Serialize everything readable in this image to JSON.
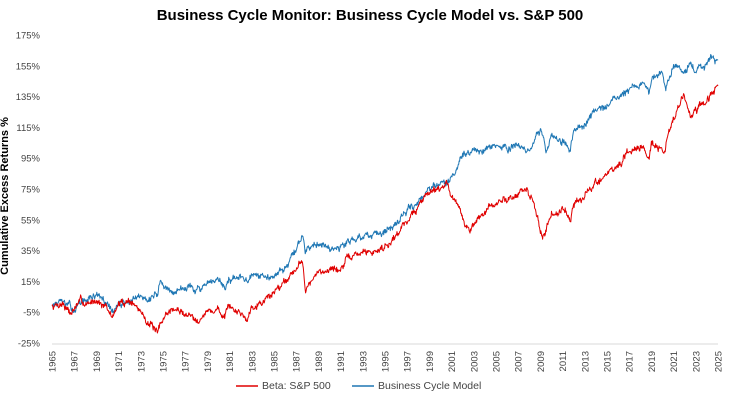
{
  "chart_data": {
    "type": "line",
    "title": "Business Cycle Monitor: Business Cycle Model vs. S&P 500",
    "xlabel": "",
    "ylabel": "Cumulative Excess Returns %",
    "xlim": [
      1965,
      2025
    ],
    "ylim": [
      -25,
      175
    ],
    "y_ticks": [
      -25,
      -5,
      15,
      35,
      55,
      75,
      95,
      115,
      135,
      155,
      175
    ],
    "y_tick_labels": [
      "-25%",
      "-5%",
      "15%",
      "35%",
      "55%",
      "75%",
      "95%",
      "115%",
      "135%",
      "155%",
      "175%"
    ],
    "x_ticks": [
      1965,
      1967,
      1969,
      1971,
      1973,
      1975,
      1977,
      1979,
      1981,
      1983,
      1985,
      1987,
      1989,
      1991,
      1993,
      1995,
      1997,
      1999,
      2001,
      2003,
      2005,
      2007,
      2009,
      2011,
      2013,
      2015,
      2017,
      2019,
      2021,
      2023,
      2025
    ],
    "x_tick_labels": [
      "1965",
      "1967",
      "1969",
      "1971",
      "1973",
      "1975",
      "1977",
      "1979",
      "1981",
      "1983",
      "1985",
      "1987",
      "1989",
      "1991",
      "1993",
      "1995",
      "1997",
      "1999",
      "2001",
      "2003",
      "2005",
      "2007",
      "2009",
      "2011",
      "2013",
      "2015",
      "2017",
      "2019",
      "2021",
      "2023",
      "2025"
    ],
    "grid": false,
    "legend_position": "bottom",
    "series": [
      {
        "name": "Beta: S&P 500",
        "color": "#e00000",
        "x": [
          1965,
          1966,
          1966.7,
          1967.5,
          1968.3,
          1969,
          1969.8,
          1970.4,
          1971,
          1972,
          1973,
          1974,
          1974.5,
          1974.75,
          1975.2,
          1976,
          1977,
          1978.2,
          1979,
          1980,
          1980.4,
          1981,
          1982,
          1982.6,
          1983,
          1984,
          1985,
          1986,
          1987,
          1987.6,
          1987.85,
          1988.5,
          1989,
          1990,
          1990.8,
          1991.5,
          1992,
          1993,
          1994,
          1995,
          1996,
          1997,
          1998,
          1999,
          2000,
          2000.5,
          2001,
          2001.7,
          2002,
          2002.7,
          2003.3,
          2004,
          2005,
          2006,
          2007,
          2007.8,
          2008.4,
          2008.8,
          2009.2,
          2010,
          2010.5,
          2011,
          2011.7,
          2012,
          2013,
          2014,
          2015,
          2016,
          2017,
          2018,
          2018.8,
          2019,
          2019.5,
          2020.2,
          2020.5,
          2021,
          2021.9,
          2022.5,
          2023,
          2024,
          2025
        ],
        "y": [
          -1,
          1,
          -6,
          2,
          0,
          4,
          -2,
          -8,
          0,
          3,
          -5,
          -14,
          -20,
          -14,
          -6,
          -3,
          -6,
          -9,
          -5,
          -3,
          -8,
          -3,
          -5,
          -10,
          0,
          2,
          8,
          16,
          24,
          28,
          10,
          16,
          20,
          24,
          22,
          28,
          31,
          34,
          34,
          38,
          45,
          55,
          63,
          75,
          76,
          79,
          72,
          60,
          55,
          48,
          55,
          60,
          65,
          69,
          72,
          74,
          65,
          55,
          42,
          60,
          58,
          64,
          56,
          65,
          70,
          79,
          85,
          90,
          98,
          104,
          96,
          107,
          103,
          97,
          112,
          120,
          136,
          122,
          125,
          132,
          142
        ]
      },
      {
        "name": "Business Cycle Model",
        "color": "#1f77b4",
        "x": [
          1965,
          1966,
          1967,
          1968,
          1969,
          1970,
          1970.5,
          1971,
          1972,
          1973,
          1974,
          1974.5,
          1974.75,
          1975.2,
          1976,
          1977,
          1978.2,
          1979,
          1980,
          1980.6,
          1981,
          1982,
          1982.6,
          1983,
          1984,
          1985,
          1986,
          1987,
          1987.6,
          1987.85,
          1988.5,
          1989,
          1990,
          1990.8,
          1991.5,
          1992,
          1993,
          1994,
          1995,
          1996,
          1997,
          1998,
          1999,
          2000,
          2000.5,
          2001,
          2002,
          2003,
          2004,
          2005,
          2006,
          2007,
          2007.5,
          2008,
          2008.6,
          2009,
          2009.5,
          2010,
          2011,
          2011.7,
          2012,
          2013,
          2014,
          2015,
          2016,
          2017,
          2018,
          2018.8,
          2019,
          2020,
          2020.3,
          2020.6,
          2021,
          2021.9,
          2022.5,
          2023,
          2024,
          2024.5,
          2025
        ],
        "y": [
          0,
          1,
          -3,
          3,
          6,
          0,
          -5,
          0,
          2,
          4,
          5,
          8,
          15,
          10,
          8,
          12,
          10,
          12,
          15,
          11,
          17,
          17,
          14,
          18,
          17,
          20,
          24,
          35,
          45,
          33,
          40,
          42,
          38,
          36,
          40,
          42,
          45,
          44,
          45,
          52,
          60,
          68,
          76,
          80,
          78,
          82,
          95,
          100,
          100,
          102,
          101,
          105,
          100,
          98,
          110,
          115,
          100,
          110,
          106,
          102,
          112,
          118,
          126,
          130,
          134,
          139,
          142,
          138,
          146,
          150,
          140,
          150,
          155,
          150,
          158,
          152,
          157,
          161,
          159
        ]
      }
    ]
  }
}
